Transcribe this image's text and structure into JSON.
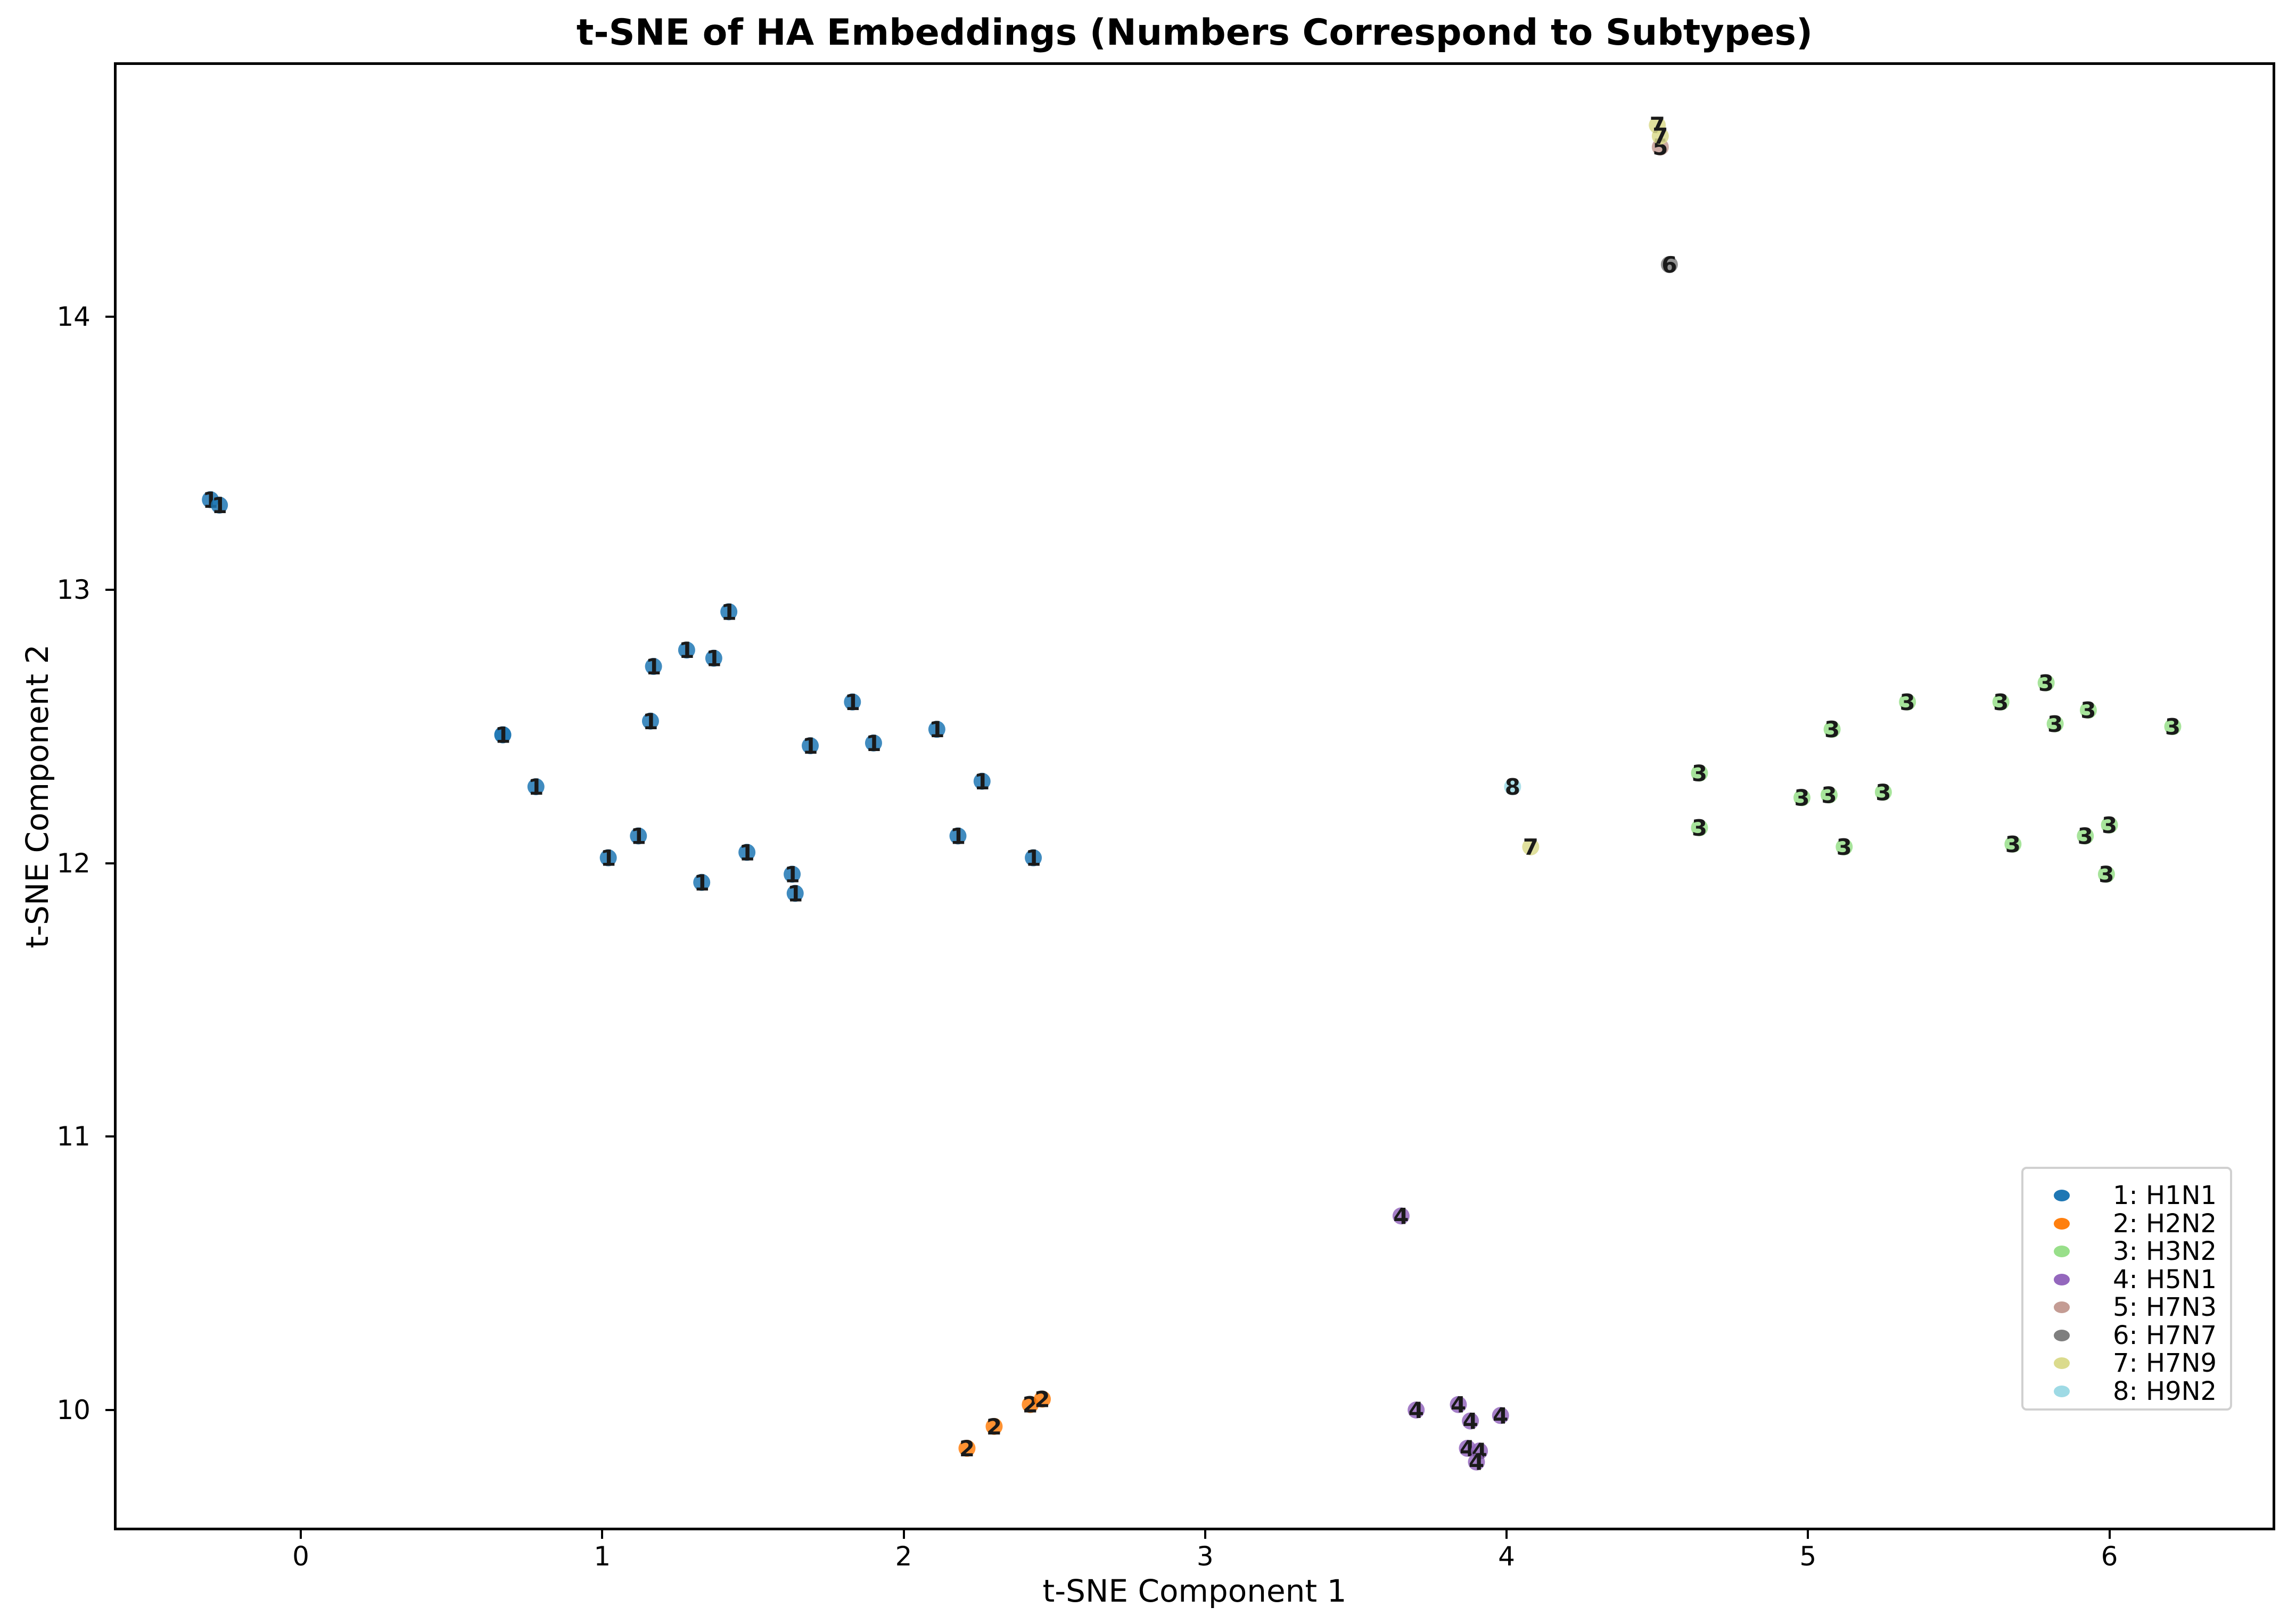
{
  "chart_data": {
    "type": "scatter",
    "title": "t-SNE of HA Embeddings (Numbers Correspond to Subtypes)",
    "xlabel": "t-SNE Component 1",
    "ylabel": "t-SNE Component 2",
    "xlim": [
      -0.62,
      6.55
    ],
    "ylim": [
      9.56,
      14.93
    ],
    "xticks": [
      "0",
      "1",
      "2",
      "3",
      "4",
      "5",
      "6"
    ],
    "yticks": [
      "10",
      "11",
      "12",
      "13",
      "14"
    ],
    "grid": false,
    "legend_position": "lower right",
    "series": [
      {
        "name": "1: H1N1",
        "label": "1",
        "color": "#1f77b4",
        "points": [
          [
            -0.3,
            13.33
          ],
          [
            -0.27,
            13.31
          ],
          [
            0.67,
            12.47
          ],
          [
            0.67,
            12.47
          ],
          [
            0.78,
            12.28
          ],
          [
            1.02,
            12.02
          ],
          [
            1.12,
            12.1
          ],
          [
            1.17,
            12.72
          ],
          [
            1.16,
            12.52
          ],
          [
            1.28,
            12.78
          ],
          [
            1.37,
            12.75
          ],
          [
            1.42,
            12.92
          ],
          [
            1.33,
            11.93
          ],
          [
            1.48,
            12.04
          ],
          [
            1.63,
            11.96
          ],
          [
            1.64,
            11.89
          ],
          [
            1.69,
            12.43
          ],
          [
            1.83,
            12.59
          ],
          [
            1.9,
            12.44
          ],
          [
            2.11,
            12.49
          ],
          [
            2.18,
            12.1
          ],
          [
            2.26,
            12.3
          ],
          [
            2.43,
            12.02
          ]
        ]
      },
      {
        "name": "2: H2N2",
        "label": "2",
        "color": "#ff7f0e",
        "points": [
          [
            2.21,
            9.86
          ],
          [
            2.3,
            9.94
          ],
          [
            2.42,
            10.02
          ],
          [
            2.46,
            10.04
          ]
        ]
      },
      {
        "name": "3: H3N2",
        "label": "3",
        "color": "#98df8a",
        "points": [
          [
            4.64,
            12.33
          ],
          [
            4.64,
            12.13
          ],
          [
            4.98,
            12.24
          ],
          [
            5.07,
            12.25
          ],
          [
            5.08,
            12.49
          ],
          [
            5.12,
            12.06
          ],
          [
            5.25,
            12.26
          ],
          [
            5.33,
            12.59
          ],
          [
            5.64,
            12.59
          ],
          [
            5.68,
            12.07
          ],
          [
            5.79,
            12.66
          ],
          [
            5.82,
            12.51
          ],
          [
            5.92,
            12.1
          ],
          [
            5.93,
            12.56
          ],
          [
            5.99,
            11.96
          ],
          [
            6.0,
            12.14
          ],
          [
            6.21,
            12.5
          ]
        ]
      },
      {
        "name": "4: H5N1",
        "label": "4",
        "color": "#9467bd",
        "points": [
          [
            3.65,
            10.71
          ],
          [
            3.7,
            10.0
          ],
          [
            3.84,
            10.02
          ],
          [
            3.88,
            9.96
          ],
          [
            3.98,
            9.98
          ],
          [
            3.87,
            9.86
          ],
          [
            3.91,
            9.85
          ],
          [
            3.9,
            9.81
          ]
        ]
      },
      {
        "name": "5: H7N3",
        "label": "5",
        "color": "#c49c94",
        "points": [
          [
            4.51,
            14.62
          ]
        ]
      },
      {
        "name": "6: H7N7",
        "label": "6",
        "color": "#7f7f7f",
        "points": [
          [
            4.54,
            14.19
          ]
        ]
      },
      {
        "name": "7: H7N9",
        "label": "7",
        "color": "#dbdb8d",
        "points": [
          [
            4.5,
            14.7
          ],
          [
            4.51,
            14.66
          ],
          [
            4.08,
            12.06
          ]
        ]
      },
      {
        "name": "8: H9N2",
        "label": "8",
        "color": "#9edae5",
        "points": [
          [
            4.02,
            12.28
          ]
        ]
      }
    ]
  }
}
